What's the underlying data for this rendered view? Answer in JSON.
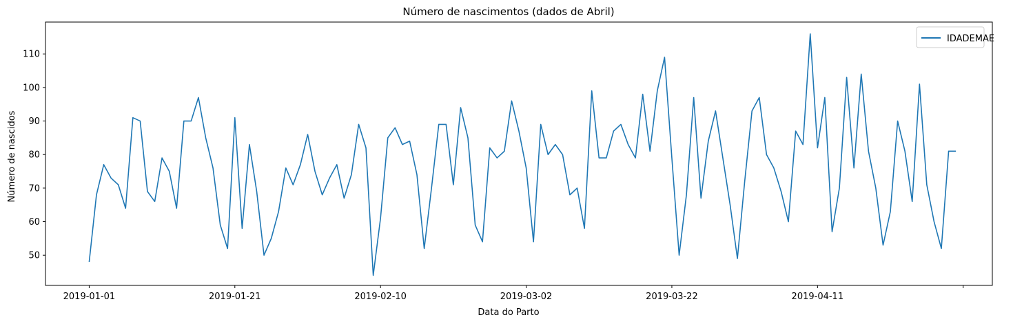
{
  "chart_data": {
    "type": "line",
    "title": "Número de nascimentos (dados de Abril)",
    "xlabel": "Data do Parto",
    "ylabel": "Número de nascidos",
    "x_start": "2019-01-01",
    "x_ticks": [
      "2019-01-01",
      "2019-01-21",
      "2019-02-10",
      "2019-03-02",
      "2019-03-22",
      "2019-04-11",
      ""
    ],
    "xlim": [
      "2018-12-26",
      "2019-05-05"
    ],
    "ylim": [
      41,
      119.5
    ],
    "y_ticks": [
      50,
      60,
      70,
      80,
      90,
      100,
      110
    ],
    "grid": false,
    "legend_position": "top-right",
    "color": "#1f77b4",
    "series": [
      {
        "name": "IDADEMAE",
        "values": [
          48,
          68,
          77,
          73,
          71,
          64,
          91,
          90,
          69,
          66,
          79,
          75,
          64,
          90,
          90,
          97,
          85,
          76,
          59,
          52,
          91,
          58,
          83,
          69,
          50,
          55,
          63,
          76,
          71,
          77,
          86,
          75,
          68,
          73,
          77,
          67,
          74,
          89,
          82,
          44,
          61,
          85,
          88,
          83,
          84,
          74,
          52,
          70,
          89,
          89,
          71,
          94,
          85,
          59,
          54,
          82,
          79,
          81,
          96,
          87,
          76,
          54,
          89,
          80,
          83,
          80,
          68,
          70,
          58,
          99,
          79,
          79,
          87,
          89,
          83,
          79,
          98,
          81,
          99,
          109,
          79,
          50,
          68,
          97,
          67,
          84,
          93,
          79,
          65,
          49,
          72,
          93,
          97,
          80,
          76,
          69,
          60,
          87,
          83,
          116,
          82,
          97,
          57,
          70,
          103,
          76,
          104,
          81,
          70,
          53,
          63,
          90,
          81,
          66,
          101,
          71,
          60,
          52,
          81,
          81
        ]
      }
    ]
  }
}
